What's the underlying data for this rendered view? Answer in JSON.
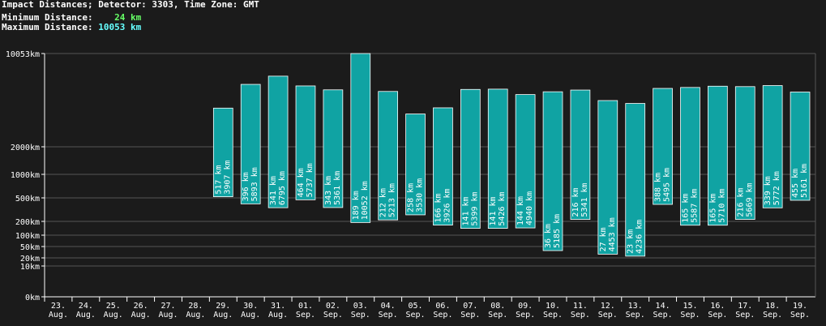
{
  "header": {
    "title": "Impact Distances; Detector: 3303, Time Zone: GMT",
    "min_label": "Minimum Distance:",
    "min_value": "24 km",
    "max_label": "Maximum Distance:",
    "max_value": "10053 km"
  },
  "colors": {
    "background": "#1b1b1b",
    "bar": "#10a3a3",
    "grid": "#555555",
    "min_value": "#66ff66",
    "max_value": "#66ffff"
  },
  "chart_data": {
    "type": "bar",
    "title": "Impact Distances; Detector: 3303, Time Zone: GMT",
    "y_scale": "nonlinear (compressed)",
    "y_ticks": [
      {
        "label": "10053km",
        "value": 10053
      },
      {
        "label": "2000km",
        "value": 2000
      },
      {
        "label": "1000km",
        "value": 1000
      },
      {
        "label": "500km",
        "value": 500
      },
      {
        "label": "200km",
        "value": 200
      },
      {
        "label": "100km",
        "value": 100
      },
      {
        "label": "50km",
        "value": 50
      },
      {
        "label": "20km",
        "value": 20
      },
      {
        "label": "10km",
        "value": 10
      },
      {
        "label": "0km",
        "value": 0
      }
    ],
    "categories": [
      [
        "23.",
        "Aug."
      ],
      [
        "24.",
        "Aug."
      ],
      [
        "25.",
        "Aug."
      ],
      [
        "26.",
        "Aug."
      ],
      [
        "27.",
        "Aug."
      ],
      [
        "28.",
        "Aug."
      ],
      [
        "29.",
        "Aug."
      ],
      [
        "30.",
        "Aug."
      ],
      [
        "31.",
        "Aug."
      ],
      [
        "01.",
        "Sep."
      ],
      [
        "02.",
        "Sep."
      ],
      [
        "03.",
        "Sep."
      ],
      [
        "04.",
        "Sep."
      ],
      [
        "05.",
        "Sep."
      ],
      [
        "06.",
        "Sep."
      ],
      [
        "07.",
        "Sep."
      ],
      [
        "08.",
        "Sep."
      ],
      [
        "09.",
        "Sep."
      ],
      [
        "10.",
        "Sep."
      ],
      [
        "11.",
        "Sep."
      ],
      [
        "12.",
        "Sep."
      ],
      [
        "13.",
        "Sep."
      ],
      [
        "14.",
        "Sep."
      ],
      [
        "15.",
        "Sep."
      ],
      [
        "16.",
        "Sep."
      ],
      [
        "17.",
        "Sep."
      ],
      [
        "18.",
        "Sep."
      ],
      [
        "19.",
        "Sep."
      ]
    ],
    "bars": [
      null,
      null,
      null,
      null,
      null,
      null,
      {
        "min": 517,
        "max": 3907,
        "min_label": "517 km",
        "max_label": "3907 km"
      },
      {
        "min": 396,
        "max": 5893,
        "min_label": "396 km",
        "max_label": "5893 km"
      },
      {
        "min": 341,
        "max": 6795,
        "min_label": "341 km",
        "max_label": "6795 km"
      },
      {
        "min": 464,
        "max": 5737,
        "min_label": "464 km",
        "max_label": "5737 km"
      },
      {
        "min": 343,
        "max": 5361,
        "min_label": "343 km",
        "max_label": "5361 km"
      },
      {
        "min": 189,
        "max": 10052,
        "min_label": "189 km",
        "max_label": "10052 km"
      },
      {
        "min": 212,
        "max": 5213,
        "min_label": "212 km",
        "max_label": "5213 km"
      },
      {
        "min": 258,
        "max": 3530,
        "min_label": "258 km",
        "max_label": "3530 km"
      },
      {
        "min": 166,
        "max": 3926,
        "min_label": "166 km",
        "max_label": "3926 km"
      },
      {
        "min": 141,
        "max": 5399,
        "min_label": "141 km",
        "max_label": "5399 km"
      },
      {
        "min": 141,
        "max": 5426,
        "min_label": "141 km",
        "max_label": "5426 km"
      },
      {
        "min": 144,
        "max": 4940,
        "min_label": "144 km",
        "max_label": "4940 km"
      },
      {
        "min": 36,
        "max": 5185,
        "min_label": "36 km",
        "max_label": "5185 km"
      },
      {
        "min": 216,
        "max": 5341,
        "min_label": "216 km",
        "max_label": "5341 km"
      },
      {
        "min": 27,
        "max": 4453,
        "min_label": "27 km",
        "max_label": "4453 km"
      },
      {
        "min": 23,
        "max": 4236,
        "min_label": "23 km",
        "max_label": "4236 km"
      },
      {
        "min": 388,
        "max": 5495,
        "min_label": "388 km",
        "max_label": "5495 km"
      },
      {
        "min": 165,
        "max": 5587,
        "min_label": "165 km",
        "max_label": "5587 km"
      },
      {
        "min": 165,
        "max": 5710,
        "min_label": "165 km",
        "max_label": "5710 km"
      },
      {
        "min": 216,
        "max": 5669,
        "min_label": "216 km",
        "max_label": "5669 km"
      },
      {
        "min": 339,
        "max": 5772,
        "min_label": "339 km",
        "max_label": "5772 km"
      },
      {
        "min": 455,
        "max": 5161,
        "min_label": "455 km",
        "max_label": "5161 km"
      }
    ]
  }
}
